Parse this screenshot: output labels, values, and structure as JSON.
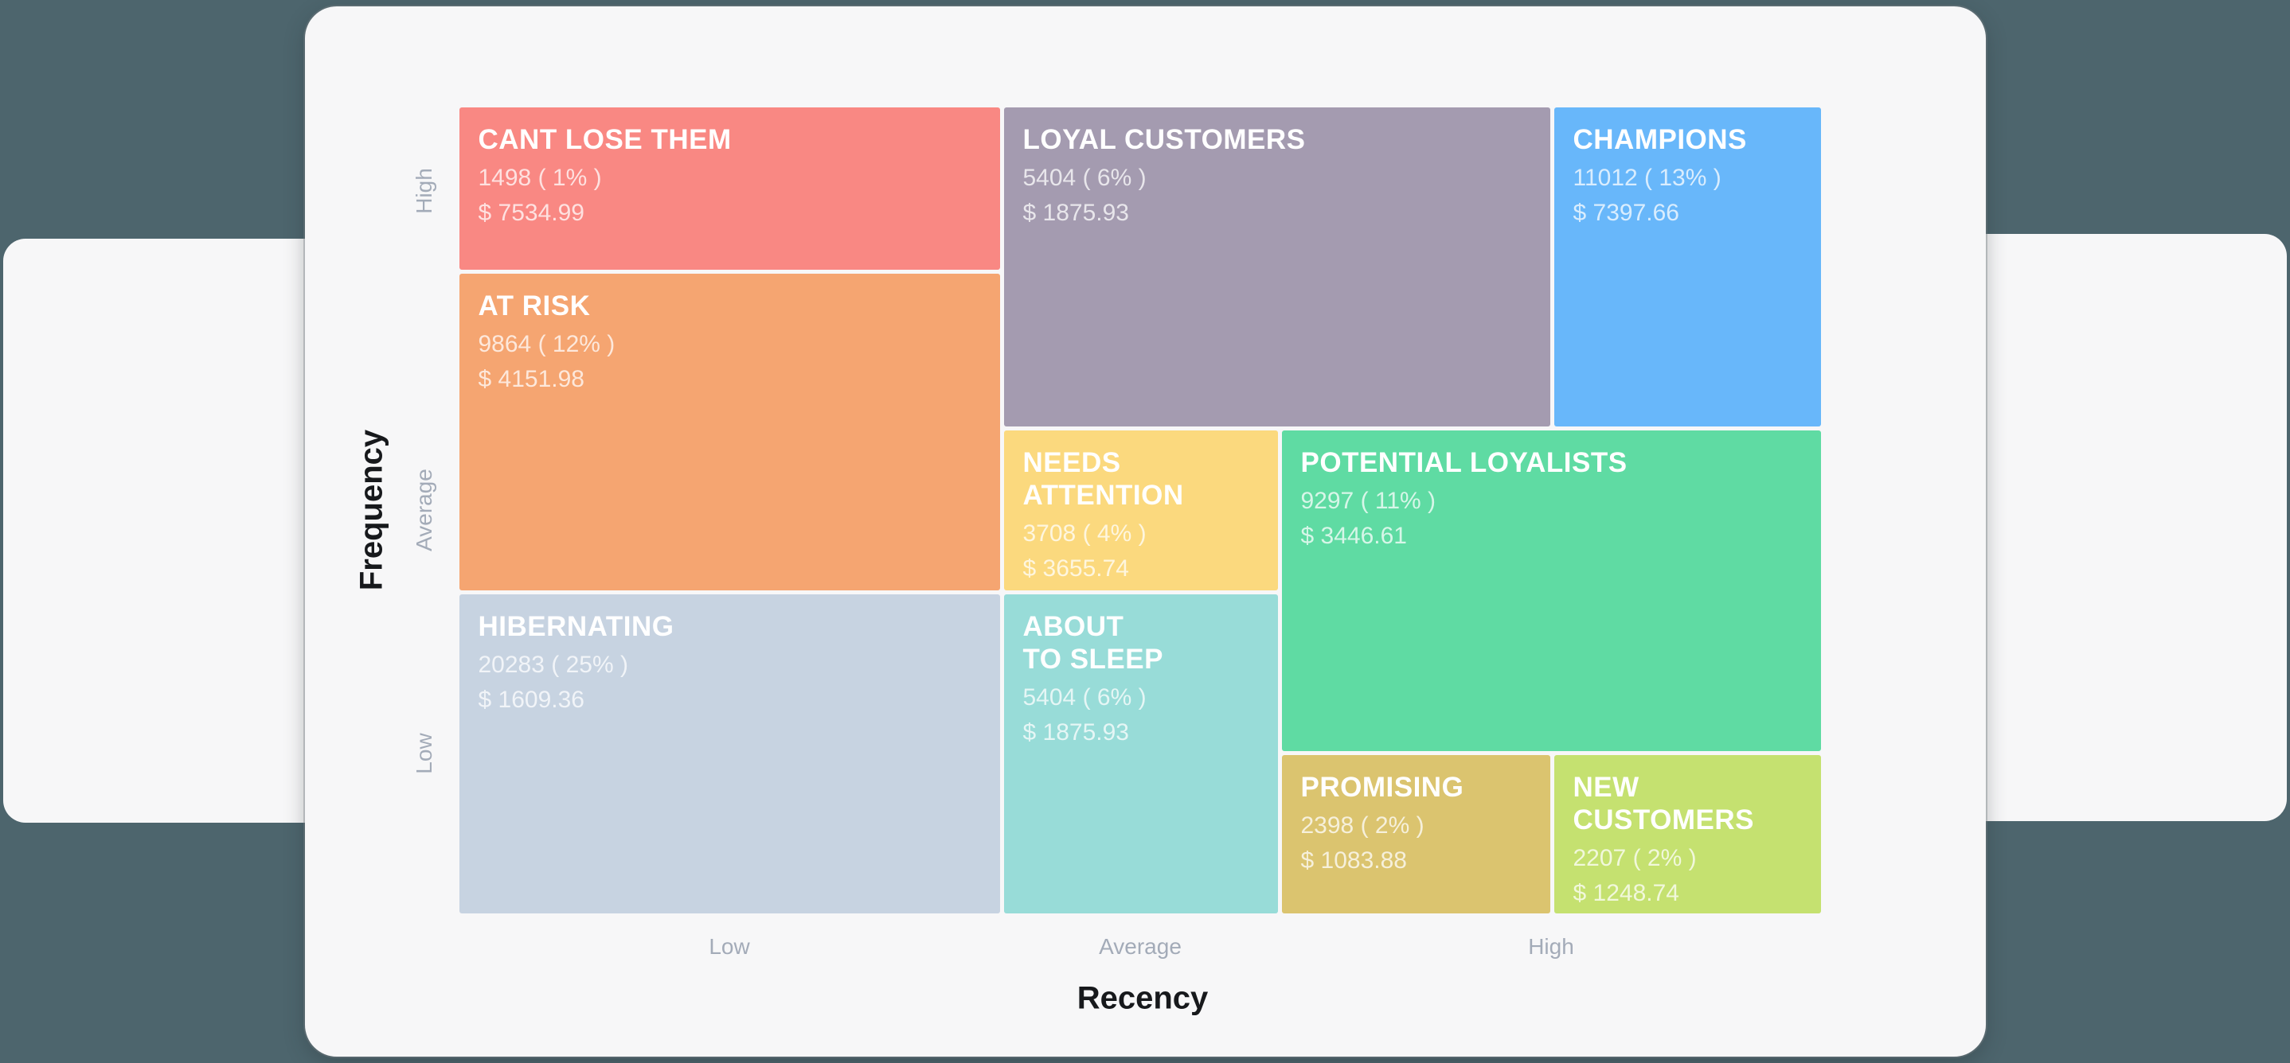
{
  "page": {
    "background_color": "#4d656d",
    "card_color": "#f7f7f8"
  },
  "chart_data": {
    "type": "heatmap",
    "title": "",
    "xlabel": "Recency",
    "ylabel": "Frequency",
    "x_ticks": [
      "Low",
      "Average",
      "High"
    ],
    "y_ticks": [
      "High",
      "Average",
      "Low"
    ],
    "grid": false,
    "legend_position": "none",
    "axis_ranges": {
      "x_bands": 3,
      "y_bands": 3
    },
    "segments": [
      {
        "id": "cant-lose-them",
        "label": "CANT LOSE THEM",
        "customers": 1498,
        "percent": 1,
        "monetary": 7534.99,
        "count_label": "1498 ( 1% )",
        "monetary_label": "$ 7534.99",
        "color": "#f98883",
        "recency": "Low",
        "frequency": "High",
        "grid": {
          "col": [
            0,
            1
          ],
          "row": [
            0,
            1
          ]
        }
      },
      {
        "id": "loyal-customers",
        "label": "LOYAL CUSTOMERS",
        "customers": 5404,
        "percent": 6,
        "monetary": 1875.93,
        "count_label": "5404 ( 6% )",
        "monetary_label": "$ 1875.93",
        "color": "#a49bb0",
        "recency": "Average",
        "frequency": "High",
        "grid": {
          "col": [
            1,
            3
          ],
          "row": [
            0,
            2
          ]
        }
      },
      {
        "id": "champions",
        "label": "CHAMPIONS",
        "customers": 11012,
        "percent": 13,
        "monetary": 7397.66,
        "count_label": "11012 ( 13% )",
        "monetary_label": "$ 7397.66",
        "color": "#68b7fa",
        "recency": "High",
        "frequency": "High",
        "grid": {
          "col": [
            3,
            4
          ],
          "row": [
            0,
            2
          ]
        }
      },
      {
        "id": "at-risk",
        "label": "AT RISK",
        "customers": 9864,
        "percent": 12,
        "monetary": 4151.98,
        "count_label": "9864 ( 12% )",
        "monetary_label": "$ 4151.98",
        "color": "#f5a571",
        "recency": "Low",
        "frequency": "Average",
        "grid": {
          "col": [
            0,
            1
          ],
          "row": [
            1,
            3
          ]
        }
      },
      {
        "id": "needs-attention",
        "label": "NEEDS\nATTENTION",
        "customers": 3708,
        "percent": 4,
        "monetary": 3655.74,
        "count_label": "3708 ( 4% )",
        "monetary_label": "$ 3655.74",
        "color": "#fbd97e",
        "recency": "Average",
        "frequency": "Average",
        "grid": {
          "col": [
            1,
            2
          ],
          "row": [
            2,
            3
          ]
        }
      },
      {
        "id": "potential-loyalists",
        "label": "POTENTIAL LOYALISTS",
        "customers": 9297,
        "percent": 11,
        "monetary": 3446.61,
        "count_label": "9297 ( 11% )",
        "monetary_label": "$ 3446.61",
        "color": "#5fdba3",
        "recency": "High",
        "frequency": "Average",
        "grid": {
          "col": [
            2,
            4
          ],
          "row": [
            2,
            4
          ]
        }
      },
      {
        "id": "hibernating",
        "label": "HIBERNATING",
        "customers": 20283,
        "percent": 25,
        "monetary": 1609.36,
        "count_label": "20283 ( 25% )",
        "monetary_label": "$ 1609.36",
        "color": "#c7d3e1",
        "recency": "Low",
        "frequency": "Low",
        "grid": {
          "col": [
            0,
            1
          ],
          "row": [
            3,
            5
          ]
        }
      },
      {
        "id": "about-to-sleep",
        "label": "ABOUT\nTO SLEEP",
        "customers": 5404,
        "percent": 6,
        "monetary": 1875.93,
        "count_label": "5404 ( 6% )",
        "monetary_label": "$ 1875.93",
        "color": "#98dcd8",
        "recency": "Average",
        "frequency": "Low",
        "grid": {
          "col": [
            1,
            2
          ],
          "row": [
            3,
            5
          ]
        }
      },
      {
        "id": "promising",
        "label": "PROMISING",
        "customers": 2398,
        "percent": 2,
        "monetary": 1083.88,
        "count_label": "2398 ( 2% )",
        "monetary_label": "$ 1083.88",
        "color": "#dbc46f",
        "recency": "High",
        "frequency": "Low",
        "grid": {
          "col": [
            2,
            3
          ],
          "row": [
            4,
            5
          ]
        }
      },
      {
        "id": "new-customers",
        "label": "NEW\nCUSTOMERS",
        "customers": 2207,
        "percent": 2,
        "monetary": 1248.74,
        "count_label": "2207 ( 2% )",
        "monetary_label": "$ 1248.74",
        "color": "#c5e170",
        "recency": "High",
        "frequency": "Low",
        "grid": {
          "col": [
            3,
            4
          ],
          "row": [
            4,
            5
          ]
        }
      }
    ]
  }
}
